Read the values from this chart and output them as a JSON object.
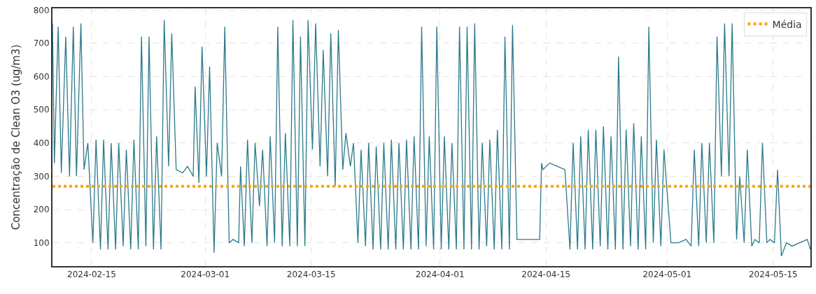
{
  "chart_data": {
    "type": "line",
    "ylabel": "Concentração de Clean O3 (ug/m3)",
    "x": [
      "2024-02-09T20:00",
      "2024-02-10T02:00",
      "2024-02-10T14:00",
      "2024-02-11T00:00",
      "2024-02-11T14:00",
      "2024-02-12T02:00",
      "2024-02-12T14:00",
      "2024-02-13T00:00",
      "2024-02-13T14:00",
      "2024-02-14T00:00",
      "2024-02-14T12:00",
      "2024-02-15T04:00",
      "2024-02-15T14:00",
      "2024-02-16T04:00",
      "2024-02-16T14:00",
      "2024-02-17T04:00",
      "2024-02-17T14:00",
      "2024-02-18T04:00",
      "2024-02-18T14:00",
      "2024-02-19T04:00",
      "2024-02-19T14:00",
      "2024-02-20T04:00",
      "2024-02-20T14:00",
      "2024-02-21T04:00",
      "2024-02-21T14:00",
      "2024-02-22T04:00",
      "2024-02-22T14:00",
      "2024-02-23T04:00",
      "2024-02-23T14:00",
      "2024-02-24T04:00",
      "2024-02-24T14:00",
      "2024-02-25T04:00",
      "2024-02-25T14:00",
      "2024-02-26T04:00",
      "2024-02-27T00:00",
      "2024-02-27T16:00",
      "2024-02-28T10:00",
      "2024-02-28T16:00",
      "2024-02-29T04:00",
      "2024-02-29T14:00",
      "2024-03-01T04:00",
      "2024-03-01T14:00",
      "2024-03-02T04:00",
      "2024-03-02T14:00",
      "2024-03-03T04:00",
      "2024-03-03T14:00",
      "2024-03-04T04:00",
      "2024-03-04T16:00",
      "2024-03-05T10:00",
      "2024-03-05T16:00",
      "2024-03-06T04:00",
      "2024-03-06T14:00",
      "2024-03-07T04:00",
      "2024-03-07T14:00",
      "2024-03-08T04:00",
      "2024-03-08T14:00",
      "2024-03-09T04:00",
      "2024-03-09T14:00",
      "2024-03-10T04:00",
      "2024-03-10T14:00",
      "2024-03-11T04:00",
      "2024-03-11T14:00",
      "2024-03-12T04:00",
      "2024-03-12T14:00",
      "2024-03-13T04:00",
      "2024-03-13T14:00",
      "2024-03-14T04:00",
      "2024-03-14T14:00",
      "2024-03-15T04:00",
      "2024-03-15T14:00",
      "2024-03-16T04:00",
      "2024-03-16T14:00",
      "2024-03-17T04:00",
      "2024-03-17T14:00",
      "2024-03-18T04:00",
      "2024-03-18T14:00",
      "2024-03-19T04:00",
      "2024-03-19T14:00",
      "2024-03-20T04:00",
      "2024-03-20T14:00",
      "2024-03-21T04:00",
      "2024-03-21T14:00",
      "2024-03-22T04:00",
      "2024-03-22T14:00",
      "2024-03-23T04:00",
      "2024-03-23T14:00",
      "2024-03-24T04:00",
      "2024-03-24T14:00",
      "2024-03-25T04:00",
      "2024-03-25T14:00",
      "2024-03-26T04:00",
      "2024-03-26T14:00",
      "2024-03-27T04:00",
      "2024-03-27T14:00",
      "2024-03-28T04:00",
      "2024-03-28T14:00",
      "2024-03-29T04:00",
      "2024-03-29T14:00",
      "2024-03-30T04:00",
      "2024-03-30T14:00",
      "2024-03-31T04:00",
      "2024-03-31T14:00",
      "2024-04-01T04:00",
      "2024-04-01T14:00",
      "2024-04-02T04:00",
      "2024-04-02T14:00",
      "2024-04-03T04:00",
      "2024-04-03T14:00",
      "2024-04-04T04:00",
      "2024-04-04T14:00",
      "2024-04-05T04:00",
      "2024-04-05T14:00",
      "2024-04-06T04:00",
      "2024-04-06T14:00",
      "2024-04-07T04:00",
      "2024-04-07T14:00",
      "2024-04-08T04:00",
      "2024-04-08T14:00",
      "2024-04-09T04:00",
      "2024-04-09T14:00",
      "2024-04-10T04:00",
      "2024-04-10T14:00",
      "2024-04-11T04:00",
      "2024-04-12T12:00",
      "2024-04-14T04:00",
      "2024-04-14T10:00",
      "2024-04-14T14:00",
      "2024-04-15T12:00",
      "2024-04-16T12:00",
      "2024-04-17T12:00",
      "2024-04-18T04:00",
      "2024-04-18T14:00",
      "2024-04-19T04:00",
      "2024-04-19T14:00",
      "2024-04-20T04:00",
      "2024-04-20T14:00",
      "2024-04-21T04:00",
      "2024-04-21T14:00",
      "2024-04-22T04:00",
      "2024-04-22T14:00",
      "2024-04-23T04:00",
      "2024-04-23T14:00",
      "2024-04-24T04:00",
      "2024-04-24T14:00",
      "2024-04-25T04:00",
      "2024-04-25T14:00",
      "2024-04-26T04:00",
      "2024-04-26T14:00",
      "2024-04-27T04:00",
      "2024-04-27T14:00",
      "2024-04-28T04:00",
      "2024-04-28T14:00",
      "2024-04-29T04:00",
      "2024-04-29T14:00",
      "2024-04-30T04:00",
      "2024-04-30T14:00",
      "2024-05-01T12:00",
      "2024-05-02T12:00",
      "2024-05-03T12:00",
      "2024-05-04T04:00",
      "2024-05-04T14:00",
      "2024-05-05T04:00",
      "2024-05-05T14:00",
      "2024-05-06T04:00",
      "2024-05-06T14:00",
      "2024-05-07T04:00",
      "2024-05-07T14:00",
      "2024-05-08T04:00",
      "2024-05-08T14:00",
      "2024-05-09T04:00",
      "2024-05-09T14:00",
      "2024-05-10T04:00",
      "2024-05-10T14:00",
      "2024-05-11T04:00",
      "2024-05-11T14:00",
      "2024-05-12T04:00",
      "2024-05-12T14:00",
      "2024-05-13T04:00",
      "2024-05-13T14:00",
      "2024-05-14T04:00",
      "2024-05-14T14:00",
      "2024-05-15T04:00",
      "2024-05-15T14:00",
      "2024-05-16T02:00",
      "2024-05-16T18:00",
      "2024-05-17T12:00",
      "2024-05-18T12:00",
      "2024-05-19T12:00",
      "2024-05-19T22:00"
    ],
    "values": [
      760,
      340,
      750,
      310,
      720,
      300,
      750,
      300,
      760,
      320,
      400,
      100,
      410,
      80,
      410,
      80,
      400,
      80,
      400,
      90,
      380,
      80,
      410,
      80,
      720,
      90,
      720,
      80,
      420,
      80,
      770,
      330,
      730,
      320,
      310,
      330,
      300,
      570,
      280,
      690,
      300,
      630,
      70,
      400,
      300,
      750,
      100,
      110,
      100,
      330,
      90,
      410,
      100,
      400,
      210,
      380,
      90,
      420,
      100,
      750,
      90,
      430,
      90,
      770,
      90,
      720,
      90,
      770,
      380,
      760,
      330,
      680,
      300,
      730,
      270,
      740,
      320,
      430,
      330,
      400,
      100,
      380,
      90,
      400,
      80,
      390,
      80,
      400,
      80,
      410,
      80,
      400,
      80,
      410,
      80,
      420,
      80,
      750,
      90,
      420,
      80,
      750,
      80,
      420,
      80,
      400,
      80,
      750,
      80,
      750,
      80,
      760,
      80,
      400,
      90,
      410,
      80,
      440,
      80,
      720,
      80,
      755,
      110,
      110,
      110,
      340,
      320,
      340,
      330,
      320,
      80,
      400,
      80,
      420,
      80,
      440,
      80,
      440,
      90,
      450,
      80,
      420,
      80,
      660,
      80,
      440,
      90,
      460,
      80,
      420,
      80,
      750,
      100,
      410,
      90,
      380,
      100,
      100,
      110,
      90,
      380,
      90,
      400,
      100,
      400,
      100,
      720,
      300,
      760,
      300,
      760,
      110,
      300,
      100,
      380,
      90,
      110,
      100,
      400,
      100,
      110,
      100,
      320,
      60,
      100,
      90,
      100,
      110,
      80
    ],
    "color": "#2b7a8b",
    "xlim": [
      "2024-02-09T20:00",
      "2024-05-19T22:00"
    ],
    "xticks": [
      "2024-02-15",
      "2024-03-01",
      "2024-03-15",
      "2024-04-01",
      "2024-04-15",
      "2024-05-01",
      "2024-05-15"
    ],
    "ylim": [
      30,
      805
    ],
    "yticks": [
      100,
      200,
      300,
      400,
      500,
      600,
      700,
      800
    ],
    "ref_lines": [
      {
        "axis": "y",
        "value": 270,
        "label": "Média",
        "color": "#ffa500",
        "line_style": "dotted"
      }
    ],
    "grid": true,
    "legend": "top right",
    "marker": "none",
    "line_style": "solid"
  }
}
